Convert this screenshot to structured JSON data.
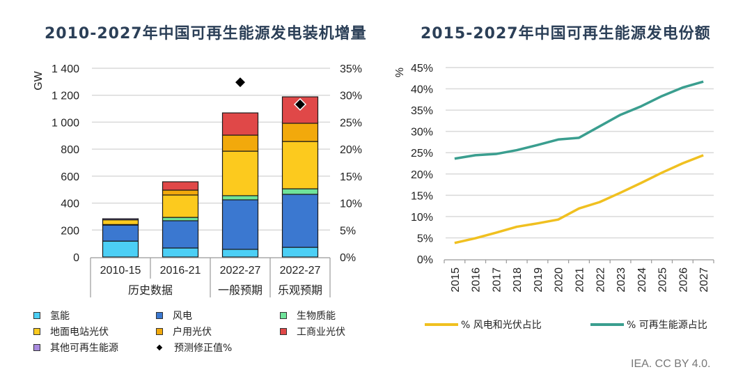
{
  "chart_data": [
    {
      "type": "bar",
      "stacked": true,
      "title": "2010-2027年中国可再生能源发电装机增量",
      "ylabel": "GW",
      "ylim": [
        0,
        1400
      ],
      "yticks": [
        "0",
        "200",
        "400",
        "600",
        "800",
        "1 000",
        "1 200",
        "1 400"
      ],
      "y2lim": [
        0,
        35
      ],
      "y2ticks": [
        "0%",
        "5%",
        "10%",
        "15%",
        "20%",
        "25%",
        "30%",
        "35%"
      ],
      "grid": true,
      "categories": [
        "2010-15",
        "2016-21",
        "2022-27",
        "2022-27"
      ],
      "groups": [
        {
          "label": "历史数据",
          "span": 2
        },
        {
          "label": "一般预期",
          "span": 1
        },
        {
          "label": "乐观预期",
          "span": 1
        }
      ],
      "series": [
        {
          "name": "氢能",
          "color": "#4ccff5",
          "values": [
            118,
            67,
            57,
            72
          ]
        },
        {
          "name": "风电",
          "color": "#3b78d0",
          "values": [
            119,
            202,
            367,
            393
          ]
        },
        {
          "name": "生物质能",
          "color": "#6fe39a",
          "values": [
            4,
            25,
            31,
            41
          ]
        },
        {
          "name": "地面电站光伏",
          "color": "#fcca1e",
          "values": [
            35,
            166,
            330,
            351
          ]
        },
        {
          "name": "户用光伏",
          "color": "#f2a90c",
          "values": [
            0,
            36,
            119,
            135
          ]
        },
        {
          "name": "工商业光伏",
          "color": "#e04848",
          "values": [
            0,
            62,
            165,
            196
          ]
        },
        {
          "name": "其他可再生能源",
          "color": "#a98be0",
          "values": [
            8,
            0,
            0,
            0
          ]
        }
      ],
      "markers": {
        "name": "预测修正值%",
        "axis": "right",
        "values": [
          null,
          null,
          32.4,
          28.3
        ]
      },
      "legend": [
        {
          "label": "氢能",
          "color": "#4ccff5",
          "kind": "box"
        },
        {
          "label": "风电",
          "color": "#3b78d0",
          "kind": "box"
        },
        {
          "label": "生物质能",
          "color": "#6fe39a",
          "kind": "box"
        },
        {
          "label": "地面电站光伏",
          "color": "#fcca1e",
          "kind": "box"
        },
        {
          "label": "户用光伏",
          "color": "#f2a90c",
          "kind": "box"
        },
        {
          "label": "工商业光伏",
          "color": "#e04848",
          "kind": "box"
        },
        {
          "label": "其他可再生能源",
          "color": "#a98be0",
          "kind": "box"
        },
        {
          "label": "预测修正值%",
          "color": "#000000",
          "kind": "diamond"
        }
      ],
      "legend_position": "bottom"
    },
    {
      "type": "line",
      "title": "2015-2027年中国可再生能源发电份额",
      "ylabel": "%",
      "ylim": [
        0,
        45
      ],
      "yticks": [
        "0%",
        "5%",
        "10%",
        "15%",
        "20%",
        "25%",
        "30%",
        "35%",
        "40%",
        "45%"
      ],
      "grid": true,
      "x": [
        "2015",
        "2016",
        "2017",
        "2018",
        "2019",
        "2020",
        "2021",
        "2022",
        "2023",
        "2024",
        "2025",
        "2026",
        "2027"
      ],
      "series": [
        {
          "name": "% 风电和光伏占比",
          "color": "#f0c020",
          "values": [
            3.8,
            4.9,
            6.2,
            7.6,
            8.4,
            9.3,
            11.9,
            13.4,
            15.6,
            17.9,
            20.3,
            22.5,
            24.4
          ]
        },
        {
          "name": "% 可再生能源占比",
          "color": "#3a9e8f",
          "values": [
            23.6,
            24.4,
            24.7,
            25.6,
            26.8,
            28.1,
            28.5,
            31.2,
            33.9,
            35.9,
            38.3,
            40.3,
            41.7
          ]
        }
      ],
      "legend_position": "bottom"
    }
  ],
  "credit": "IEA. CC BY 4.0."
}
